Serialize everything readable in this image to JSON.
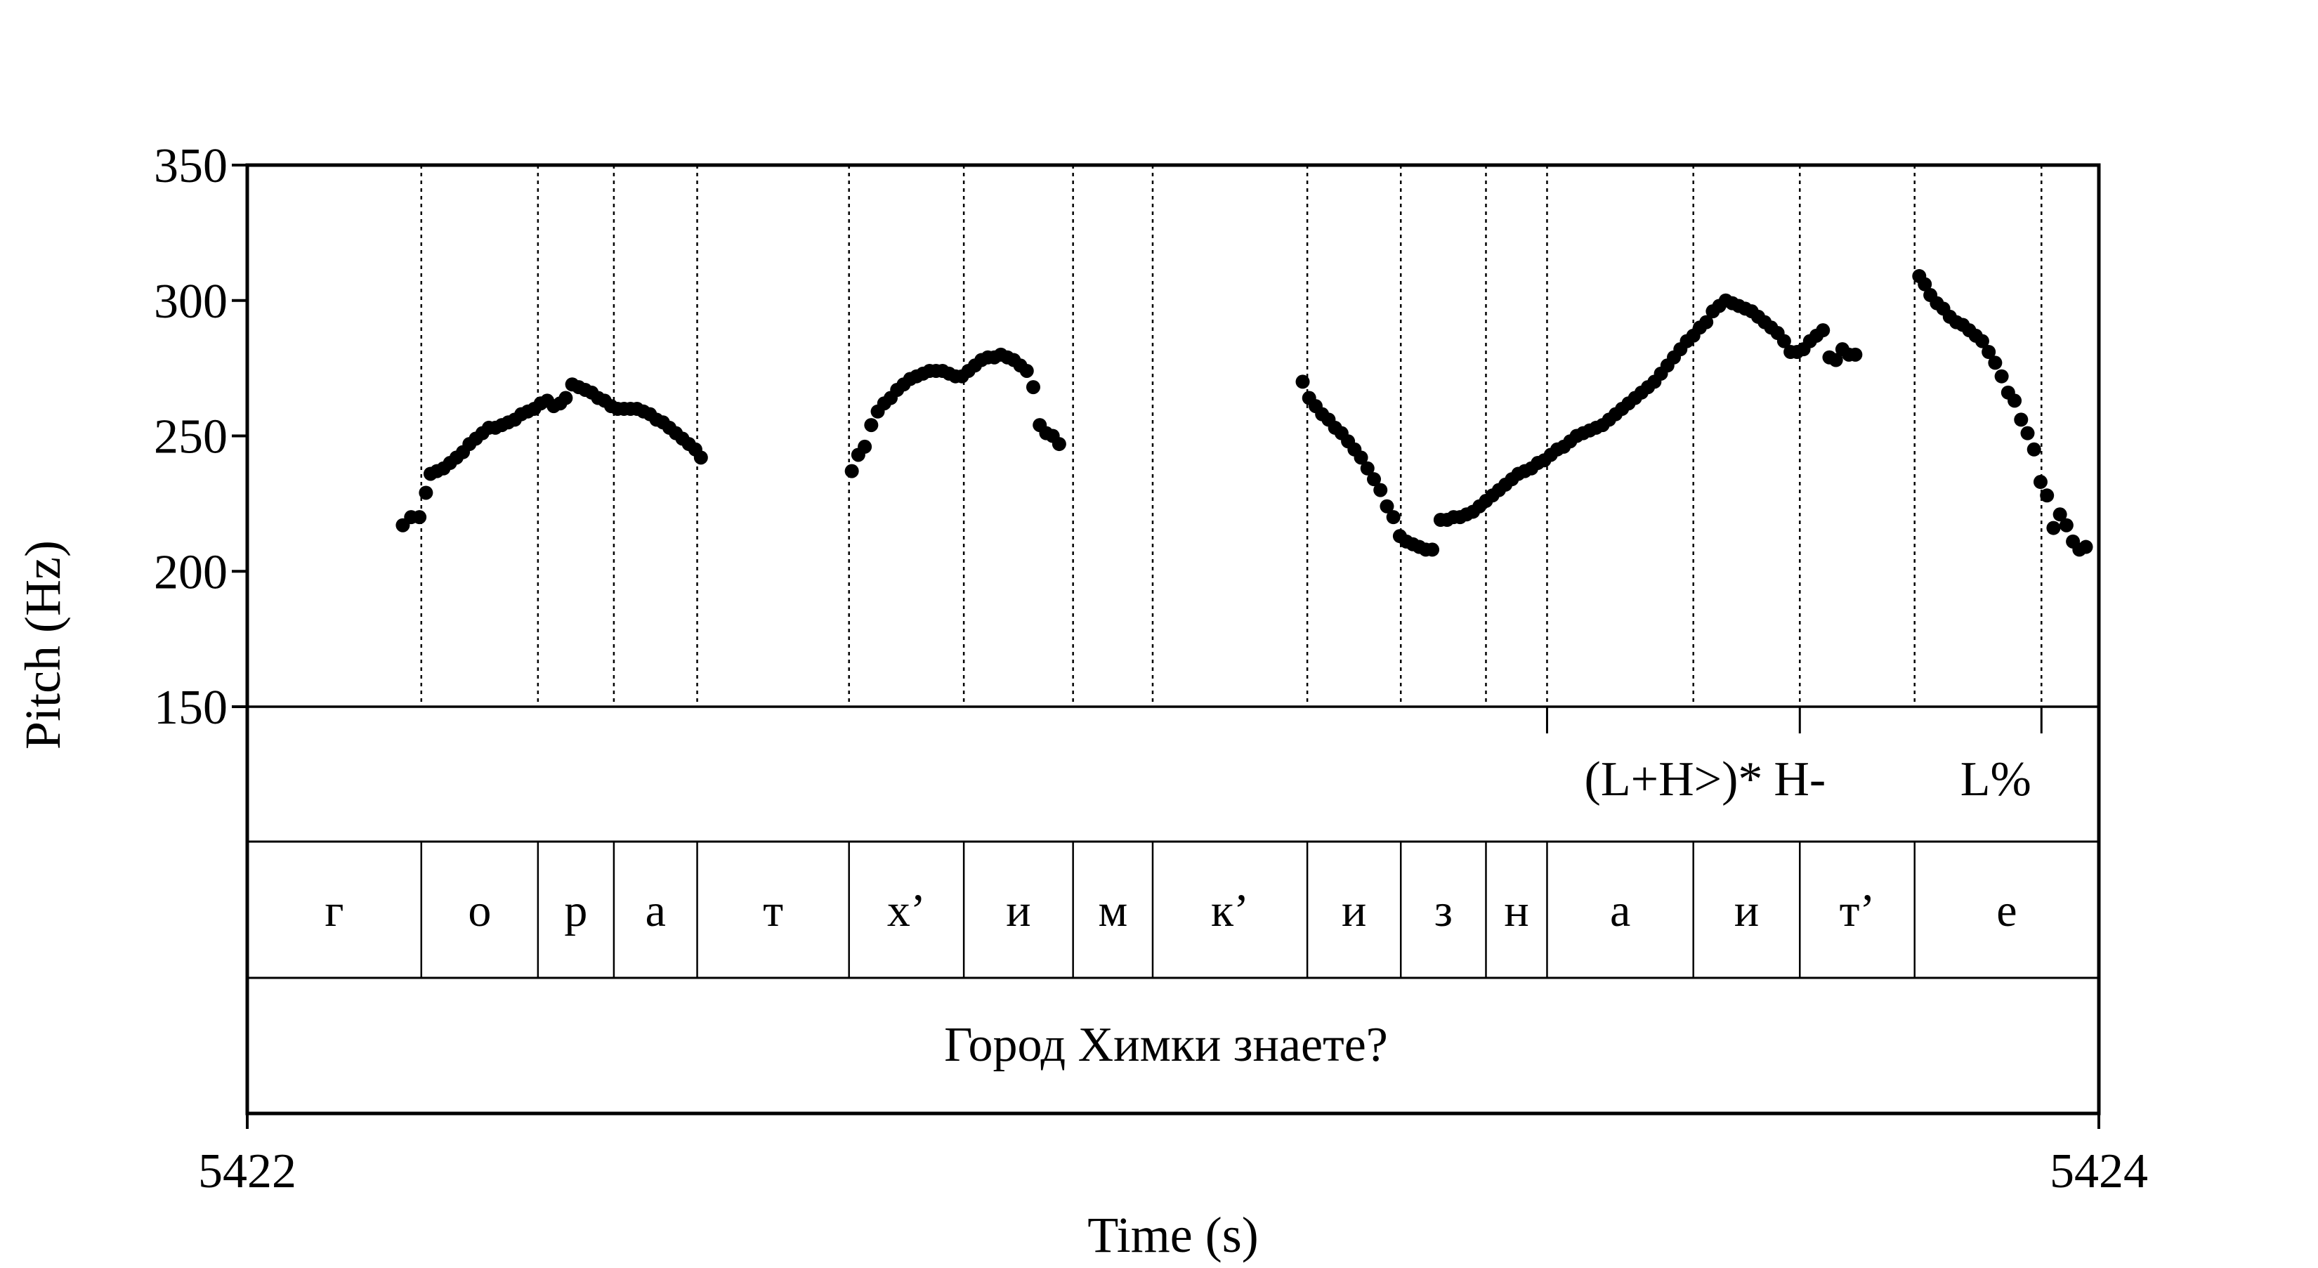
{
  "chart_data": {
    "type": "scatter",
    "title": "",
    "xlabel": "Time (s)",
    "ylabel": "Pitch (Hz)",
    "xlim": [
      5422,
      5424
    ],
    "ylim": [
      150,
      350
    ],
    "x_ticks": [
      "5422",
      "5424"
    ],
    "y_ticks": [
      "150",
      "200",
      "250",
      "300",
      "350"
    ],
    "grid": "dotted vertical lines at segment boundaries",
    "segment_boundaries": [
      5422.188,
      5422.314,
      5422.396,
      5422.486,
      5422.65,
      5422.774,
      5422.892,
      5422.978,
      5423.145,
      5423.246,
      5423.338,
      5423.404,
      5423.562,
      5423.677,
      5423.801,
      5423.938
    ],
    "segments": [
      {
        "label": "г",
        "start": 5422.0,
        "end": 5422.188
      },
      {
        "label": "о",
        "start": 5422.188,
        "end": 5422.314
      },
      {
        "label": "р",
        "start": 5422.314,
        "end": 5422.396
      },
      {
        "label": "а",
        "start": 5422.396,
        "end": 5422.486
      },
      {
        "label": "т",
        "start": 5422.486,
        "end": 5422.65
      },
      {
        "label": "х’",
        "start": 5422.65,
        "end": 5422.774
      },
      {
        "label": "и",
        "start": 5422.774,
        "end": 5422.892
      },
      {
        "label": "м",
        "start": 5422.892,
        "end": 5422.978
      },
      {
        "label": "к’",
        "start": 5422.978,
        "end": 5423.145
      },
      {
        "label": "и",
        "start": 5423.145,
        "end": 5423.246
      },
      {
        "label": "з",
        "start": 5423.246,
        "end": 5423.338
      },
      {
        "label": "н",
        "start": 5423.338,
        "end": 5423.404
      },
      {
        "label": "а",
        "start": 5423.404,
        "end": 5423.562
      },
      {
        "label": "и",
        "start": 5423.562,
        "end": 5423.677
      },
      {
        "label": "т’",
        "start": 5423.677,
        "end": 5423.801
      },
      {
        "label": "е",
        "start": 5423.801,
        "end": 5424.0
      }
    ],
    "tones": [
      {
        "label": "(L+H>)*",
        "time": 5423.404
      },
      {
        "label": "H-",
        "time": 5423.677
      },
      {
        "label": "L%",
        "time": 5423.938
      }
    ],
    "sentence": "Город Химки знаете?",
    "series": [
      {
        "values": [
          [
            5422.168,
            217
          ],
          [
            5422.177,
            220
          ],
          [
            5422.186,
            220
          ],
          [
            5422.193,
            229
          ],
          [
            5422.198,
            236
          ],
          [
            5422.205,
            237
          ],
          [
            5422.212,
            238
          ],
          [
            5422.219,
            240
          ],
          [
            5422.226,
            242
          ],
          [
            5422.233,
            244
          ],
          [
            5422.24,
            247
          ],
          [
            5422.247,
            249
          ],
          [
            5422.254,
            251
          ],
          [
            5422.261,
            253
          ],
          [
            5422.268,
            253
          ],
          [
            5422.275,
            254
          ],
          [
            5422.282,
            255
          ],
          [
            5422.289,
            256
          ],
          [
            5422.296,
            258
          ],
          [
            5422.303,
            259
          ],
          [
            5422.31,
            260
          ],
          [
            5422.317,
            262
          ],
          [
            5422.324,
            263
          ],
          [
            5422.331,
            261
          ],
          [
            5422.338,
            262
          ],
          [
            5422.344,
            264
          ],
          [
            5422.351,
            269
          ],
          [
            5422.358,
            268
          ],
          [
            5422.365,
            267
          ],
          [
            5422.372,
            266
          ],
          [
            5422.379,
            264
          ],
          [
            5422.386,
            263
          ],
          [
            5422.393,
            261
          ],
          [
            5422.4,
            260
          ],
          [
            5422.407,
            260
          ],
          [
            5422.414,
            260
          ],
          [
            5422.421,
            260
          ],
          [
            5422.428,
            259
          ],
          [
            5422.435,
            258
          ],
          [
            5422.442,
            256
          ],
          [
            5422.449,
            255
          ],
          [
            5422.456,
            253
          ],
          [
            5422.463,
            251
          ],
          [
            5422.47,
            249
          ],
          [
            5422.477,
            247
          ],
          [
            5422.484,
            245
          ],
          [
            5422.49,
            242
          ],
          [
            5422.653,
            237
          ],
          [
            5422.66,
            243
          ],
          [
            5422.667,
            246
          ],
          [
            5422.674,
            254
          ],
          [
            5422.681,
            259
          ],
          [
            5422.688,
            262
          ],
          [
            5422.695,
            264
          ],
          [
            5422.702,
            267
          ],
          [
            5422.709,
            269
          ],
          [
            5422.716,
            271
          ],
          [
            5422.723,
            272
          ],
          [
            5422.73,
            273
          ],
          [
            5422.737,
            274
          ],
          [
            5422.744,
            274
          ],
          [
            5422.751,
            274
          ],
          [
            5422.758,
            273
          ],
          [
            5422.765,
            272
          ],
          [
            5422.772,
            272
          ],
          [
            5422.779,
            274
          ],
          [
            5422.786,
            276
          ],
          [
            5422.793,
            278
          ],
          [
            5422.8,
            279
          ],
          [
            5422.807,
            279
          ],
          [
            5422.814,
            280
          ],
          [
            5422.821,
            279
          ],
          [
            5422.828,
            278
          ],
          [
            5422.835,
            276
          ],
          [
            5422.842,
            274
          ],
          [
            5422.849,
            268
          ],
          [
            5422.856,
            254
          ],
          [
            5422.863,
            251
          ],
          [
            5422.87,
            250
          ],
          [
            5422.877,
            247
          ],
          [
            5423.14,
            270
          ],
          [
            5423.147,
            264
          ],
          [
            5423.154,
            261
          ],
          [
            5423.161,
            258
          ],
          [
            5423.168,
            256
          ],
          [
            5423.175,
            253
          ],
          [
            5423.182,
            251
          ],
          [
            5423.189,
            248
          ],
          [
            5423.196,
            245
          ],
          [
            5423.203,
            242
          ],
          [
            5423.21,
            238
          ],
          [
            5423.217,
            234
          ],
          [
            5423.224,
            230
          ],
          [
            5423.231,
            224
          ],
          [
            5423.238,
            220
          ],
          [
            5423.245,
            213
          ],
          [
            5423.252,
            211
          ],
          [
            5423.259,
            210
          ],
          [
            5423.266,
            209
          ],
          [
            5423.273,
            208
          ],
          [
            5423.28,
            208
          ],
          [
            5423.289,
            219
          ],
          [
            5423.296,
            219
          ],
          [
            5423.303,
            220
          ],
          [
            5423.31,
            220
          ],
          [
            5423.317,
            221
          ],
          [
            5423.324,
            222
          ],
          [
            5423.331,
            224
          ],
          [
            5423.338,
            226
          ],
          [
            5423.345,
            228
          ],
          [
            5423.352,
            230
          ],
          [
            5423.359,
            232
          ],
          [
            5423.366,
            234
          ],
          [
            5423.373,
            236
          ],
          [
            5423.38,
            237
          ],
          [
            5423.387,
            238
          ],
          [
            5423.394,
            240
          ],
          [
            5423.401,
            241
          ],
          [
            5423.408,
            243
          ],
          [
            5423.415,
            245
          ],
          [
            5423.422,
            246
          ],
          [
            5423.429,
            248
          ],
          [
            5423.436,
            250
          ],
          [
            5423.443,
            251
          ],
          [
            5423.45,
            252
          ],
          [
            5423.457,
            253
          ],
          [
            5423.464,
            254
          ],
          [
            5423.471,
            256
          ],
          [
            5423.478,
            258
          ],
          [
            5423.485,
            260
          ],
          [
            5423.492,
            262
          ],
          [
            5423.499,
            264
          ],
          [
            5423.506,
            266
          ],
          [
            5423.513,
            268
          ],
          [
            5423.52,
            270
          ],
          [
            5423.527,
            273
          ],
          [
            5423.534,
            276
          ],
          [
            5423.541,
            279
          ],
          [
            5423.548,
            282
          ],
          [
            5423.555,
            285
          ],
          [
            5423.562,
            287
          ],
          [
            5423.569,
            290
          ],
          [
            5423.576,
            292
          ],
          [
            5423.583,
            296
          ],
          [
            5423.59,
            298
          ],
          [
            5423.597,
            300
          ],
          [
            5423.604,
            299
          ],
          [
            5423.611,
            298
          ],
          [
            5423.618,
            297
          ],
          [
            5423.625,
            296
          ],
          [
            5423.632,
            294
          ],
          [
            5423.639,
            292
          ],
          [
            5423.646,
            290
          ],
          [
            5423.653,
            288
          ],
          [
            5423.66,
            285
          ],
          [
            5423.667,
            281
          ],
          [
            5423.674,
            281
          ],
          [
            5423.681,
            282
          ],
          [
            5423.688,
            285
          ],
          [
            5423.695,
            287
          ],
          [
            5423.702,
            289
          ],
          [
            5423.709,
            279
          ],
          [
            5423.716,
            278
          ],
          [
            5423.723,
            282
          ],
          [
            5423.73,
            280
          ],
          [
            5423.737,
            280
          ],
          [
            5423.806,
            309
          ],
          [
            5423.812,
            306
          ],
          [
            5423.818,
            302
          ],
          [
            5423.825,
            299
          ],
          [
            5423.832,
            297
          ],
          [
            5423.839,
            294
          ],
          [
            5423.846,
            292
          ],
          [
            5423.853,
            291
          ],
          [
            5423.86,
            289
          ],
          [
            5423.867,
            287
          ],
          [
            5423.874,
            285
          ],
          [
            5423.881,
            281
          ],
          [
            5423.888,
            277
          ],
          [
            5423.895,
            272
          ],
          [
            5423.902,
            266
          ],
          [
            5423.909,
            263
          ],
          [
            5423.916,
            256
          ],
          [
            5423.923,
            251
          ],
          [
            5423.93,
            245
          ],
          [
            5423.937,
            233
          ],
          [
            5423.944,
            228
          ],
          [
            5423.951,
            216
          ],
          [
            5423.958,
            221
          ],
          [
            5423.965,
            217
          ],
          [
            5423.972,
            211
          ],
          [
            5423.979,
            208
          ],
          [
            5423.986,
            209
          ]
        ]
      }
    ]
  }
}
